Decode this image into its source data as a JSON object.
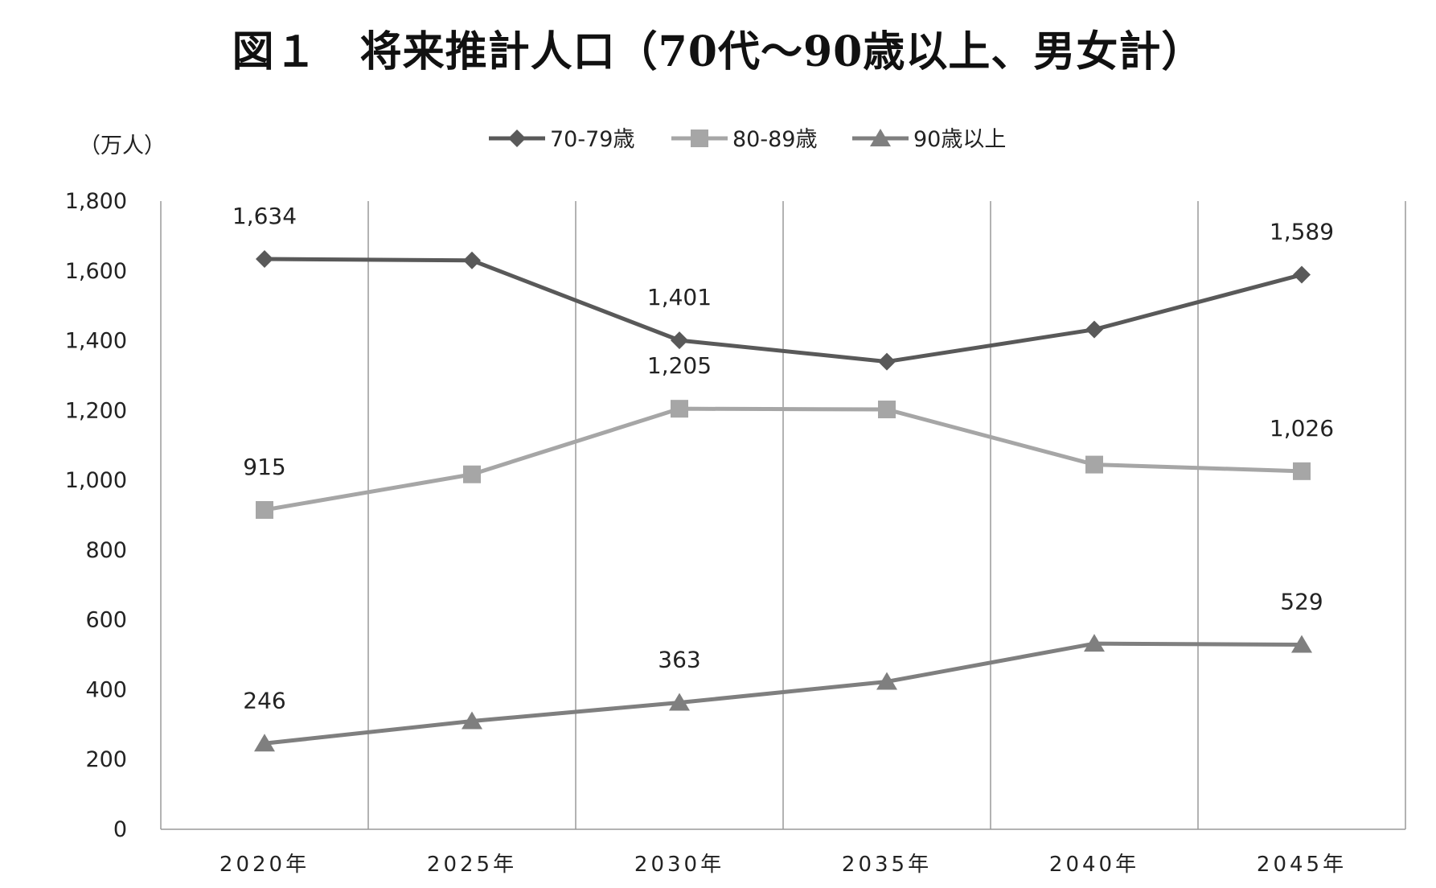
{
  "chart_data": {
    "type": "line",
    "title": "図１　将来推計人口（70代〜90歳以上、男女計）",
    "ylabel": "（万人）",
    "xlabel": "",
    "categories": [
      "2020年",
      "2025年",
      "2030年",
      "2035年",
      "2040年",
      "2045年"
    ],
    "ylim": [
      0,
      1800
    ],
    "yticks": [
      0,
      200,
      400,
      600,
      800,
      1000,
      1200,
      1400,
      1600,
      1800
    ],
    "ytick_labels": [
      "0",
      "200",
      "400",
      "600",
      "800",
      "1,000",
      "1,200",
      "1,400",
      "1,600",
      "1,800"
    ],
    "grid": "vertical",
    "legend_position": "top",
    "series": [
      {
        "name": "70-79歳",
        "values": [
          1634,
          1630,
          1401,
          1340,
          1432,
          1589
        ],
        "marker": "diamond",
        "color": "#595959",
        "data_labels": [
          "1,634",
          "",
          "1,401",
          "",
          "",
          "1,589"
        ]
      },
      {
        "name": "80-89歳",
        "values": [
          915,
          1017,
          1205,
          1203,
          1045,
          1026
        ],
        "marker": "square",
        "color": "#a6a6a6",
        "data_labels": [
          "915",
          "",
          "1,205",
          "",
          "",
          "1,026"
        ]
      },
      {
        "name": "90歳以上",
        "values": [
          246,
          310,
          363,
          423,
          532,
          529
        ],
        "marker": "triangle",
        "color": "#7f7f7f",
        "data_labels": [
          "246",
          "",
          "363",
          "",
          "",
          "529"
        ]
      }
    ]
  }
}
